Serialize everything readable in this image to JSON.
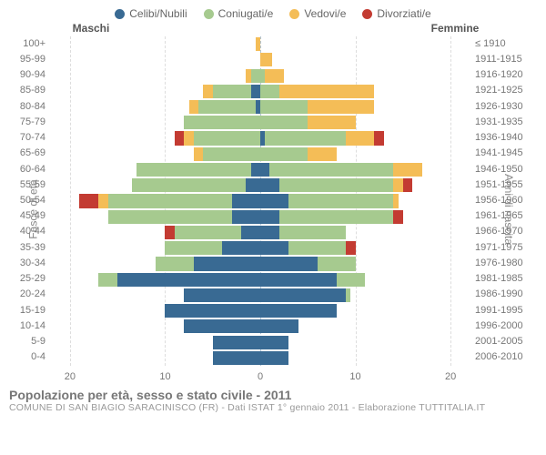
{
  "legend": {
    "items": [
      {
        "label": "Celibi/Nubili",
        "color": "#396a93"
      },
      {
        "label": "Coniugati/e",
        "color": "#a6ca8f"
      },
      {
        "label": "Vedovi/e",
        "color": "#f4bd57"
      },
      {
        "label": "Divorziati/e",
        "color": "#c33b32"
      }
    ]
  },
  "header": {
    "male_label": "Maschi",
    "female_label": "Femmine"
  },
  "axes": {
    "y_left_title": "Fasce di età",
    "y_right_title": "Anni di nascita",
    "x_max": 22,
    "x_ticks": [
      20,
      10,
      0,
      10,
      20
    ],
    "x_tick_labels": [
      "20",
      "10",
      "0",
      "10",
      "20"
    ],
    "grid_positions": [
      -20,
      -10,
      10,
      20
    ]
  },
  "rows": [
    {
      "age": "100+",
      "birth": "≤ 1910",
      "m": {
        "c": 0,
        "k": 0,
        "v": 0.5,
        "d": 0
      },
      "f": {
        "c": 0,
        "k": 0,
        "v": 0,
        "d": 0
      }
    },
    {
      "age": "95-99",
      "birth": "1911-1915",
      "m": {
        "c": 0,
        "k": 0,
        "v": 0,
        "d": 0
      },
      "f": {
        "c": 0,
        "k": 0,
        "v": 1.2,
        "d": 0
      }
    },
    {
      "age": "90-94",
      "birth": "1916-1920",
      "m": {
        "c": 0,
        "k": 1,
        "v": 0.5,
        "d": 0
      },
      "f": {
        "c": 0,
        "k": 0.5,
        "v": 2,
        "d": 0
      }
    },
    {
      "age": "85-89",
      "birth": "1921-1925",
      "m": {
        "c": 1,
        "k": 4,
        "v": 1,
        "d": 0
      },
      "f": {
        "c": 0,
        "k": 2,
        "v": 10,
        "d": 0
      }
    },
    {
      "age": "80-84",
      "birth": "1926-1930",
      "m": {
        "c": 0.5,
        "k": 6,
        "v": 1,
        "d": 0
      },
      "f": {
        "c": 0,
        "k": 5,
        "v": 7,
        "d": 0
      }
    },
    {
      "age": "75-79",
      "birth": "1931-1935",
      "m": {
        "c": 0,
        "k": 8,
        "v": 0,
        "d": 0
      },
      "f": {
        "c": 0,
        "k": 5,
        "v": 5,
        "d": 0
      }
    },
    {
      "age": "70-74",
      "birth": "1936-1940",
      "m": {
        "c": 0,
        "k": 7,
        "v": 1,
        "d": 1
      },
      "f": {
        "c": 0.5,
        "k": 8.5,
        "v": 3,
        "d": 1
      }
    },
    {
      "age": "65-69",
      "birth": "1941-1945",
      "m": {
        "c": 0,
        "k": 6,
        "v": 1,
        "d": 0
      },
      "f": {
        "c": 0,
        "k": 5,
        "v": 3,
        "d": 0
      }
    },
    {
      "age": "60-64",
      "birth": "1946-1950",
      "m": {
        "c": 1,
        "k": 12,
        "v": 0,
        "d": 0
      },
      "f": {
        "c": 1,
        "k": 13,
        "v": 3,
        "d": 0
      }
    },
    {
      "age": "55-59",
      "birth": "1951-1955",
      "m": {
        "c": 1.5,
        "k": 12,
        "v": 0,
        "d": 0
      },
      "f": {
        "c": 2,
        "k": 12,
        "v": 1,
        "d": 1
      }
    },
    {
      "age": "50-54",
      "birth": "1956-1960",
      "m": {
        "c": 3,
        "k": 13,
        "v": 1,
        "d": 2
      },
      "f": {
        "c": 3,
        "k": 11,
        "v": 0.5,
        "d": 0
      }
    },
    {
      "age": "45-49",
      "birth": "1961-1965",
      "m": {
        "c": 3,
        "k": 13,
        "v": 0,
        "d": 0
      },
      "f": {
        "c": 2,
        "k": 12,
        "v": 0,
        "d": 1
      }
    },
    {
      "age": "40-44",
      "birth": "1966-1970",
      "m": {
        "c": 2,
        "k": 7,
        "v": 0,
        "d": 1
      },
      "f": {
        "c": 2,
        "k": 7,
        "v": 0,
        "d": 0
      }
    },
    {
      "age": "35-39",
      "birth": "1971-1975",
      "m": {
        "c": 4,
        "k": 6,
        "v": 0,
        "d": 0
      },
      "f": {
        "c": 3,
        "k": 6,
        "v": 0,
        "d": 1
      }
    },
    {
      "age": "30-34",
      "birth": "1976-1980",
      "m": {
        "c": 7,
        "k": 4,
        "v": 0,
        "d": 0
      },
      "f": {
        "c": 6,
        "k": 4,
        "v": 0,
        "d": 0
      }
    },
    {
      "age": "25-29",
      "birth": "1981-1985",
      "m": {
        "c": 15,
        "k": 2,
        "v": 0,
        "d": 0
      },
      "f": {
        "c": 8,
        "k": 3,
        "v": 0,
        "d": 0
      }
    },
    {
      "age": "20-24",
      "birth": "1986-1990",
      "m": {
        "c": 8,
        "k": 0,
        "v": 0,
        "d": 0
      },
      "f": {
        "c": 9,
        "k": 0.5,
        "v": 0,
        "d": 0
      }
    },
    {
      "age": "15-19",
      "birth": "1991-1995",
      "m": {
        "c": 10,
        "k": 0,
        "v": 0,
        "d": 0
      },
      "f": {
        "c": 8,
        "k": 0,
        "v": 0,
        "d": 0
      }
    },
    {
      "age": "10-14",
      "birth": "1996-2000",
      "m": {
        "c": 8,
        "k": 0,
        "v": 0,
        "d": 0
      },
      "f": {
        "c": 4,
        "k": 0,
        "v": 0,
        "d": 0
      }
    },
    {
      "age": "5-9",
      "birth": "2001-2005",
      "m": {
        "c": 5,
        "k": 0,
        "v": 0,
        "d": 0
      },
      "f": {
        "c": 3,
        "k": 0,
        "v": 0,
        "d": 0
      }
    },
    {
      "age": "0-4",
      "birth": "2006-2010",
      "m": {
        "c": 5,
        "k": 0,
        "v": 0,
        "d": 0
      },
      "f": {
        "c": 3,
        "k": 0,
        "v": 0,
        "d": 0
      }
    }
  ],
  "footer": {
    "title": "Popolazione per età, sesso e stato civile - 2011",
    "subtitle": "COMUNE DI SAN BIAGIO SARACINISCO (FR) - Dati ISTAT 1° gennaio 2011 - Elaborazione TUTTITALIA.IT"
  },
  "style": {
    "row_gap_ratio": 0.12,
    "background": "#ffffff"
  }
}
